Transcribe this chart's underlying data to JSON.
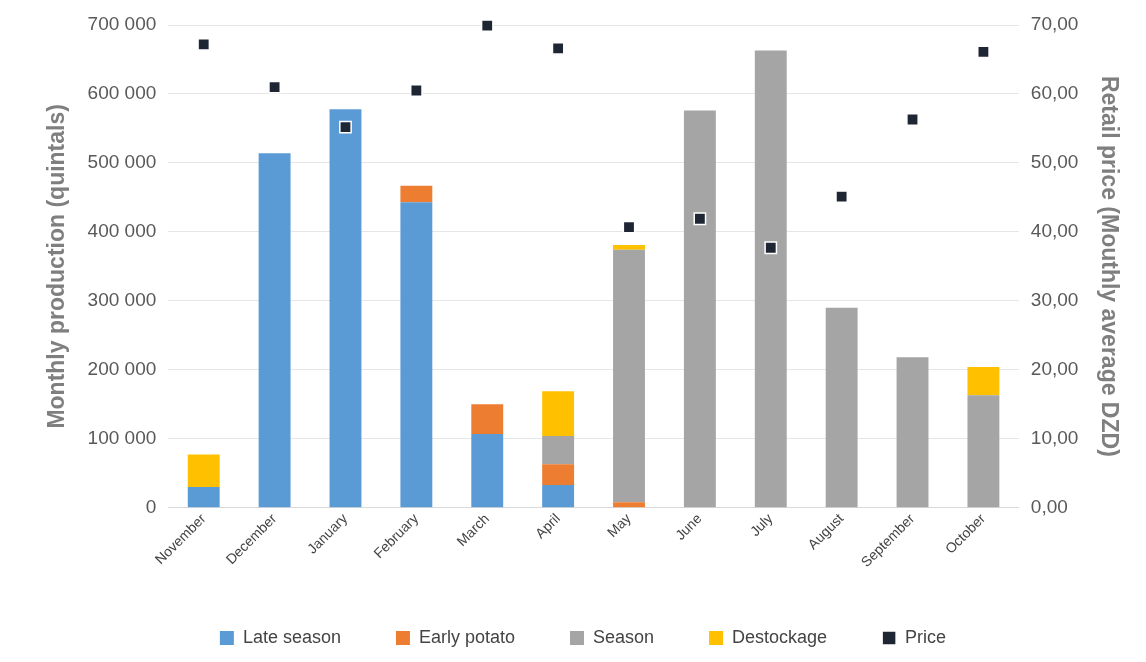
{
  "chart_data": {
    "type": "bar",
    "stacked": true,
    "ylabel": "Monthly production (quintals)",
    "y2label": "Retail price (Mouthly average DZD)",
    "categories": [
      "November",
      "December",
      "January",
      "February",
      "March",
      "April",
      "May",
      "June",
      "July",
      "August",
      "September",
      "October"
    ],
    "series": [
      {
        "name": "Late season",
        "color": "#5b9bd5",
        "values": [
          30000,
          514000,
          578000,
          443000,
          107000,
          33000,
          0,
          0,
          0,
          0,
          0,
          0
        ]
      },
      {
        "name": "Early potato",
        "color": "#ed7d31",
        "values": [
          0,
          0,
          0,
          24000,
          43000,
          30000,
          8000,
          0,
          0,
          0,
          0,
          0
        ]
      },
      {
        "name": "Season",
        "color": "#a5a5a5",
        "values": [
          0,
          0,
          0,
          0,
          0,
          41000,
          366000,
          576000,
          663000,
          290000,
          218000,
          163000
        ]
      },
      {
        "name": "Destockage",
        "color": "#ffc000",
        "values": [
          47000,
          0,
          0,
          0,
          0,
          65000,
          7000,
          0,
          0,
          0,
          0,
          41000
        ]
      },
      {
        "name": "Price",
        "type": "scatter",
        "axis": "y2",
        "marker": "square",
        "color": "#1f2633",
        "x": [
          "November",
          "December",
          "January",
          "February",
          "March",
          "April",
          "May",
          "June",
          "July",
          "August",
          "September",
          "October"
        ],
        "values": [
          67.2,
          61.0,
          55.2,
          60.5,
          69.9,
          66.6,
          40.7,
          41.9,
          37.7,
          45.1,
          56.3,
          66.1
        ]
      }
    ],
    "ylim": [
      0,
      700000
    ],
    "yticks": [
      {
        "value": 0,
        "label": "0"
      },
      {
        "value": 100000,
        "label": "100 000"
      },
      {
        "value": 200000,
        "label": "200 000"
      },
      {
        "value": 300000,
        "label": "300 000"
      },
      {
        "value": 400000,
        "label": "400 000"
      },
      {
        "value": 500000,
        "label": "500 000"
      },
      {
        "value": 600000,
        "label": "600 000"
      },
      {
        "value": 700000,
        "label": "700 000"
      }
    ],
    "y2lim": [
      0,
      70
    ],
    "y2ticks": [
      {
        "value": 0,
        "label": "0,00"
      },
      {
        "value": 10,
        "label": "10,00"
      },
      {
        "value": 20,
        "label": "20,00"
      },
      {
        "value": 30,
        "label": "30,00"
      },
      {
        "value": 40,
        "label": "40,00"
      },
      {
        "value": 50,
        "label": "50,00"
      },
      {
        "value": 60,
        "label": "60,00"
      },
      {
        "value": 70,
        "label": "70,00"
      }
    ],
    "grid": "y",
    "legend": "bottom"
  }
}
